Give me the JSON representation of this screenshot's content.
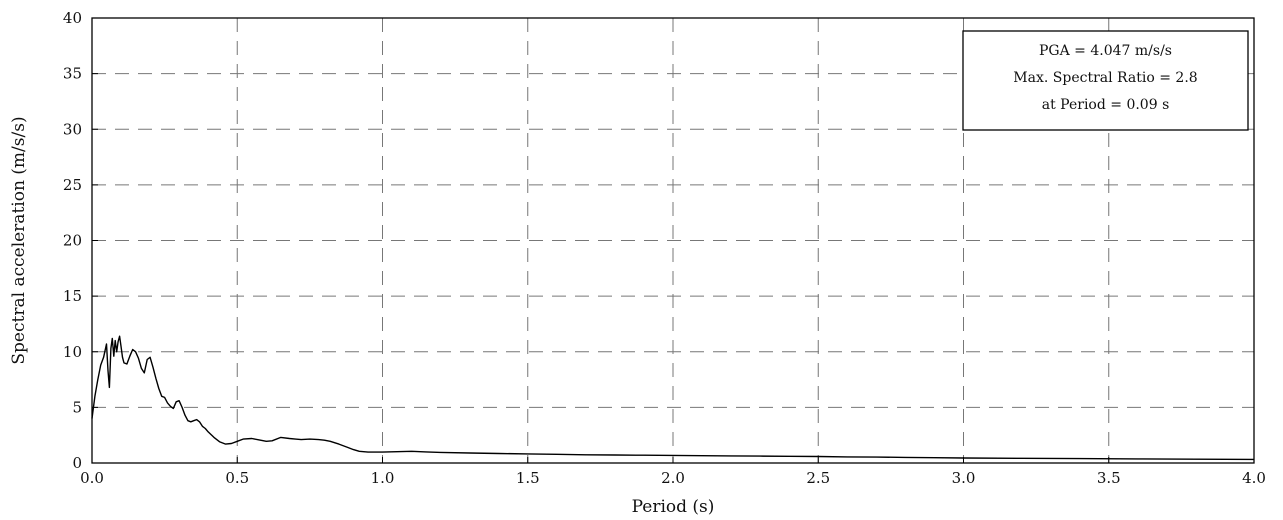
{
  "chart_data": {
    "type": "line",
    "xlabel": "Period (s)",
    "ylabel": "Spectral acceleration (m/s/s)",
    "xlim": [
      0,
      4.0
    ],
    "ylim": [
      0,
      40
    ],
    "x_ticks": [
      "0.0",
      "0.5",
      "1.0",
      "1.5",
      "2.0",
      "2.5",
      "3.0",
      "3.5",
      "4.0"
    ],
    "y_ticks": [
      "0",
      "5",
      "10",
      "15",
      "20",
      "25",
      "30",
      "35",
      "40"
    ],
    "grid": true,
    "annotation_lines": [
      "PGA = 4.047 m/s/s",
      "Max. Spectral Ratio = 2.8",
      "at Period = 0.09 s"
    ],
    "annotation_position": "top-right",
    "line_color": "#000000",
    "series": [
      {
        "x": [
          0.0,
          0.01,
          0.02,
          0.03,
          0.04,
          0.05,
          0.055,
          0.06,
          0.065,
          0.07,
          0.075,
          0.08,
          0.085,
          0.09,
          0.095,
          0.1,
          0.105,
          0.11,
          0.12,
          0.13,
          0.14,
          0.15,
          0.16,
          0.17,
          0.18,
          0.19,
          0.2,
          0.21,
          0.22,
          0.23,
          0.24,
          0.25,
          0.26,
          0.27,
          0.28,
          0.29,
          0.3,
          0.31,
          0.32,
          0.33,
          0.34,
          0.35,
          0.36,
          0.37,
          0.38,
          0.39,
          0.4,
          0.42,
          0.44,
          0.46,
          0.48,
          0.5,
          0.52,
          0.55,
          0.58,
          0.6,
          0.62,
          0.65,
          0.68,
          0.7,
          0.72,
          0.75,
          0.78,
          0.8,
          0.82,
          0.85,
          0.88,
          0.9,
          0.92,
          0.95,
          1.0,
          1.05,
          1.1,
          1.15,
          1.2,
          1.3,
          1.4,
          1.5,
          1.6,
          1.7,
          1.8,
          1.9,
          2.0,
          2.1,
          2.2,
          2.3,
          2.4,
          2.5,
          2.6,
          2.7,
          2.8,
          2.9,
          3.0,
          3.2,
          3.4,
          3.6,
          3.8,
          4.0
        ],
        "y": [
          4.0,
          6.0,
          7.5,
          8.8,
          9.5,
          10.7,
          8.3,
          6.8,
          10.3,
          11.2,
          9.6,
          11.0,
          10.0,
          10.9,
          11.4,
          10.5,
          9.5,
          9.0,
          8.9,
          9.6,
          10.2,
          10.0,
          9.4,
          8.5,
          8.1,
          9.3,
          9.5,
          8.6,
          7.6,
          6.7,
          6.0,
          5.9,
          5.4,
          5.1,
          4.9,
          5.5,
          5.6,
          5.0,
          4.3,
          3.8,
          3.7,
          3.8,
          3.9,
          3.7,
          3.3,
          3.1,
          2.8,
          2.3,
          1.9,
          1.7,
          1.75,
          1.95,
          2.15,
          2.2,
          2.05,
          1.95,
          2.0,
          2.3,
          2.2,
          2.15,
          2.1,
          2.15,
          2.1,
          2.05,
          1.95,
          1.7,
          1.4,
          1.2,
          1.05,
          0.98,
          0.98,
          1.02,
          1.05,
          1.0,
          0.95,
          0.9,
          0.85,
          0.82,
          0.78,
          0.74,
          0.72,
          0.7,
          0.68,
          0.66,
          0.64,
          0.62,
          0.6,
          0.58,
          0.55,
          0.53,
          0.5,
          0.48,
          0.45,
          0.42,
          0.4,
          0.37,
          0.34,
          0.32
        ]
      }
    ]
  }
}
